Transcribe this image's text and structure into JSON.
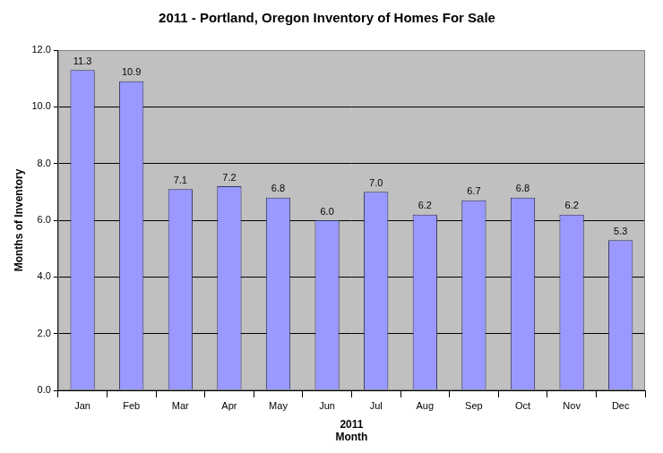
{
  "chart_data": {
    "type": "bar",
    "title": "2011 - Portland, Oregon Inventory of Homes For Sale",
    "x_label": "Month",
    "x_group_label": "2011",
    "y_label": "Months of Inventory",
    "categories": [
      "Jan",
      "Feb",
      "Mar",
      "Apr",
      "May",
      "Jun",
      "Jul",
      "Aug",
      "Sep",
      "Oct",
      "Nov",
      "Dec"
    ],
    "values": [
      11.3,
      10.9,
      7.1,
      7.2,
      6.8,
      6.0,
      7.0,
      6.2,
      6.7,
      6.8,
      6.2,
      5.3
    ],
    "value_labels": [
      "11.3",
      "10.9",
      "7.1",
      "7.2",
      "6.8",
      "6.0",
      "7.0",
      "6.2",
      "6.7",
      "6.8",
      "6.2",
      "5.3"
    ],
    "data_labels": true,
    "color": "#9999ff",
    "ylim": [
      0,
      12
    ],
    "yticks": [
      {
        "value": 0,
        "label": "0.0"
      },
      {
        "value": 2,
        "label": "2.0"
      },
      {
        "value": 4,
        "label": "4.0"
      },
      {
        "value": 6,
        "label": "6.0"
      },
      {
        "value": 8,
        "label": "8.0"
      },
      {
        "value": 10,
        "label": "10.0"
      },
      {
        "value": 12,
        "label": "12.0"
      }
    ],
    "grid": true
  }
}
